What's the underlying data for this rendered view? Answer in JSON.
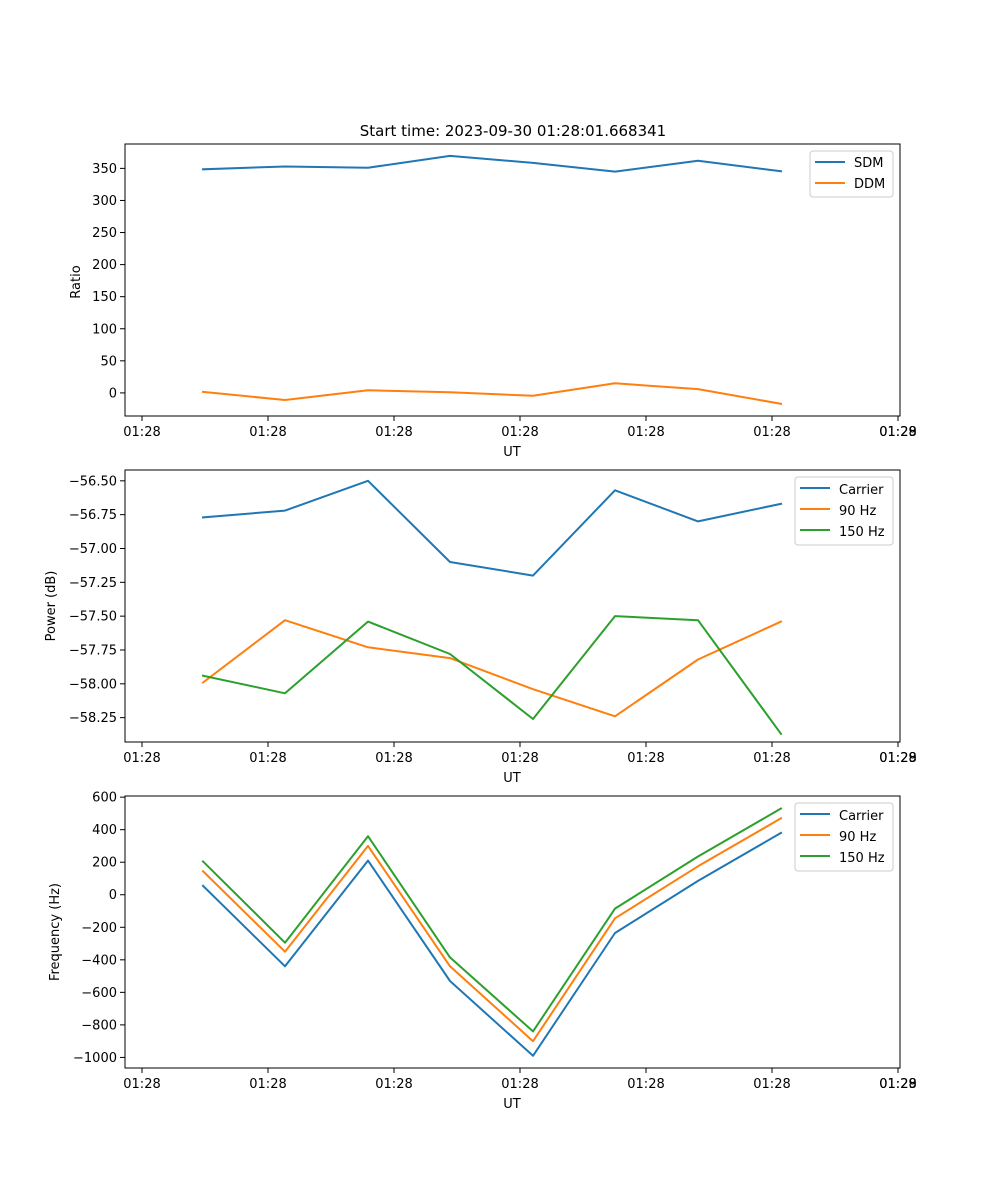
{
  "chart_data": [
    {
      "type": "line",
      "title": "Start time: 2023-09-30 01:28:01.668341",
      "xlabel": "UT",
      "ylabel": "Ratio",
      "xtick_labels": [
        "01:28",
        "01:28",
        "01:28",
        "01:28",
        "01:28",
        "01:28",
        "01:28",
        "01:29"
      ],
      "ylim": [
        -36,
        388
      ],
      "yticks": [
        0,
        50,
        100,
        150,
        200,
        250,
        300,
        350
      ],
      "ytick_labels": [
        "0",
        "50",
        "100",
        "150",
        "200",
        "250",
        "300",
        "350"
      ],
      "legend_position": "top-right",
      "series": [
        {
          "name": "SDM",
          "color": "#1f77b4",
          "values": [
            348.5,
            353,
            351,
            369.5,
            358.5,
            345,
            362,
            345.5
          ]
        },
        {
          "name": "DDM",
          "color": "#ff7f0e",
          "values": [
            1.5,
            -11,
            4,
            1,
            -4.5,
            15,
            6,
            -17
          ]
        }
      ]
    },
    {
      "type": "line",
      "title": "",
      "xlabel": "UT",
      "ylabel": "Power (dB)",
      "xtick_labels": [
        "01:28",
        "01:28",
        "01:28",
        "01:28",
        "01:28",
        "01:28",
        "01:28",
        "01:29"
      ],
      "ylim": [
        -58.43,
        -56.42
      ],
      "yticks": [
        -58.25,
        -58.0,
        -57.75,
        -57.5,
        -57.25,
        -57.0,
        -56.75,
        -56.5
      ],
      "ytick_labels": [
        "−58.25",
        "−58.00",
        "−57.75",
        "−57.50",
        "−57.25",
        "−57.00",
        "−56.75",
        "−56.50"
      ],
      "legend_position": "top-right",
      "series": [
        {
          "name": "Carrier",
          "color": "#1f77b4",
          "values": [
            -56.77,
            -56.72,
            -56.5,
            -57.1,
            -57.2,
            -56.57,
            -56.8,
            -56.67
          ]
        },
        {
          "name": "90 Hz",
          "color": "#ff7f0e",
          "values": [
            -57.99,
            -57.53,
            -57.73,
            -57.81,
            -58.04,
            -58.24,
            -57.82,
            -57.54
          ]
        },
        {
          "name": "150 Hz",
          "color": "#2ca02c",
          "values": [
            -57.94,
            -58.07,
            -57.54,
            -57.78,
            -58.26,
            -57.5,
            -57.53,
            -58.37
          ]
        }
      ]
    },
    {
      "type": "line",
      "title": "",
      "xlabel": "UT",
      "ylabel": "Frequency (Hz)",
      "xtick_labels": [
        "01:28",
        "01:28",
        "01:28",
        "01:28",
        "01:28",
        "01:28",
        "01:28",
        "01:29"
      ],
      "ylim": [
        -1065,
        607
      ],
      "yticks": [
        -1000,
        -800,
        -600,
        -400,
        -200,
        0,
        200,
        400,
        600
      ],
      "ytick_labels": [
        "−1000",
        "−800",
        "−600",
        "−400",
        "−200",
        "0",
        "200",
        "400",
        "600"
      ],
      "legend_position": "top-right",
      "series": [
        {
          "name": "Carrier",
          "color": "#1f77b4",
          "values": [
            55,
            -440,
            210,
            -530,
            -990,
            -235,
            85,
            380
          ]
        },
        {
          "name": "90 Hz",
          "color": "#ff7f0e",
          "values": [
            145,
            -350,
            300,
            -440,
            -900,
            -145,
            175,
            470
          ]
        },
        {
          "name": "150 Hz",
          "color": "#2ca02c",
          "values": [
            205,
            -295,
            360,
            -385,
            -840,
            -85,
            235,
            530
          ]
        }
      ]
    }
  ]
}
